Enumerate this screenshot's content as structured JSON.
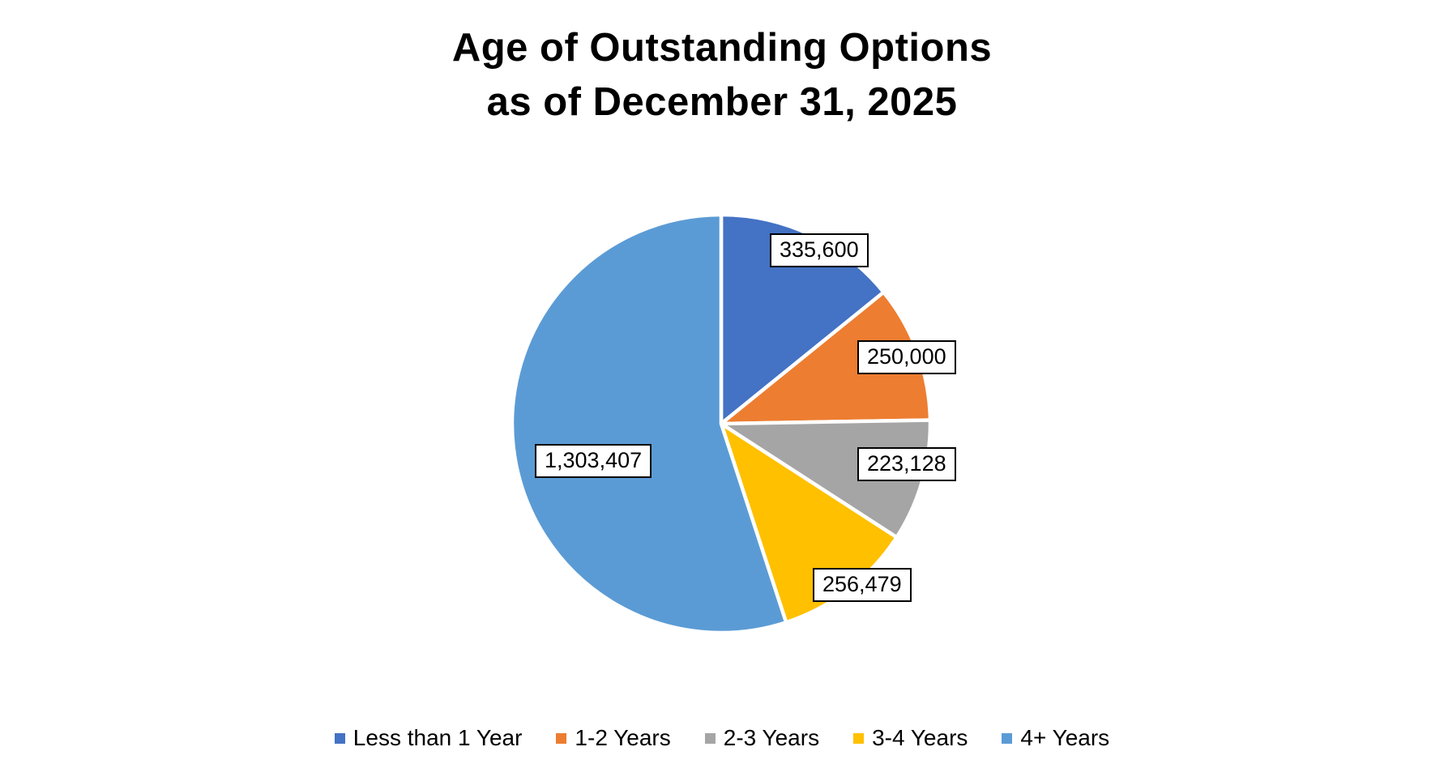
{
  "title": {
    "line1": "Age of Outstanding Options",
    "line2": "as of December 31, 2025"
  },
  "chart_data": {
    "type": "pie",
    "title": "Age of Outstanding Options as of December 31, 2025",
    "categories": [
      "Less than 1 Year",
      "1-2 Years",
      "2-3 Years",
      "3-4 Years",
      "4+ Years"
    ],
    "values": [
      335600,
      250000,
      223128,
      256479,
      1303407
    ],
    "data_labels": [
      "335,600",
      "250,000",
      "223,128",
      "256,479",
      "1,303,407"
    ],
    "colors": [
      "#4472C4",
      "#ED7D31",
      "#A5A5A5",
      "#FFC000",
      "#5B9BD5"
    ],
    "slice_border_color": "#FFFFFF",
    "start_angle_deg": 0,
    "direction": "clockwise",
    "legend_position": "bottom",
    "data_label_style": "boxed, white fill, black border, black text"
  }
}
